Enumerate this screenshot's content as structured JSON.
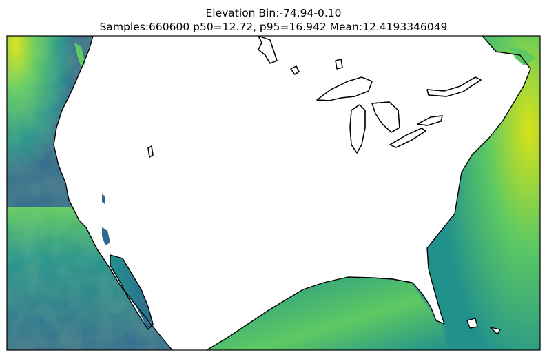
{
  "figure": {
    "title_line1": "Elevation Bin:-74.94-0.10",
    "title_line2": "Samples:660600 p50=12.72, p95=16.942 Mean:12.4193346049"
  },
  "map": {
    "region": "contiguous United States with surrounding ocean",
    "colormap": "viridis",
    "land_color": "#ffffff",
    "coastline_color": "#000000",
    "colors": {
      "low": "#2f6a8e",
      "mid": "#21918c",
      "high": "#5ec962",
      "peak": "#d8e219"
    }
  }
}
